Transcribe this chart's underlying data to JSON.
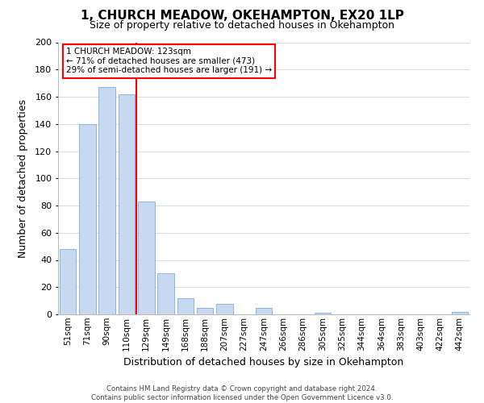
{
  "title": "1, CHURCH MEADOW, OKEHAMPTON, EX20 1LP",
  "subtitle": "Size of property relative to detached houses in Okehampton",
  "xlabel": "Distribution of detached houses by size in Okehampton",
  "ylabel": "Number of detached properties",
  "bar_labels": [
    "51sqm",
    "71sqm",
    "90sqm",
    "110sqm",
    "129sqm",
    "149sqm",
    "168sqm",
    "188sqm",
    "207sqm",
    "227sqm",
    "247sqm",
    "266sqm",
    "286sqm",
    "305sqm",
    "325sqm",
    "344sqm",
    "364sqm",
    "383sqm",
    "403sqm",
    "422sqm",
    "442sqm"
  ],
  "bar_values": [
    48,
    140,
    167,
    162,
    83,
    30,
    12,
    5,
    8,
    0,
    5,
    0,
    0,
    1,
    0,
    0,
    0,
    0,
    0,
    0,
    2
  ],
  "bar_color": "#c6d9f1",
  "bar_edge_color": "#8db4e2",
  "vline_x_index": 3.5,
  "vline_color": "red",
  "ylim": [
    0,
    200
  ],
  "yticks": [
    0,
    20,
    40,
    60,
    80,
    100,
    120,
    140,
    160,
    180,
    200
  ],
  "annotation_box_line1": "1 CHURCH MEADOW: 123sqm",
  "annotation_box_line2": "← 71% of detached houses are smaller (473)",
  "annotation_box_line3": "29% of semi-detached houses are larger (191) →",
  "footer_line1": "Contains HM Land Registry data © Crown copyright and database right 2024.",
  "footer_line2": "Contains public sector information licensed under the Open Government Licence v3.0.",
  "background_color": "#ffffff",
  "grid_color": "#d4dfe8",
  "title_fontsize": 11,
  "subtitle_fontsize": 9,
  "xlabel_fontsize": 9,
  "ylabel_fontsize": 9
}
